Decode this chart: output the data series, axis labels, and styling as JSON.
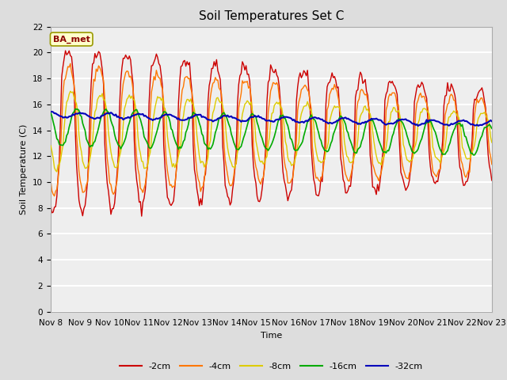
{
  "title": "Soil Temperatures Set C",
  "xlabel": "Time",
  "ylabel": "Soil Temperature (C)",
  "ylim": [
    0,
    22
  ],
  "yticks": [
    0,
    2,
    4,
    6,
    8,
    10,
    12,
    14,
    16,
    18,
    20,
    22
  ],
  "xtick_labels": [
    "Nov 8",
    "Nov 9",
    "Nov 10",
    "Nov 11",
    "Nov 12",
    "Nov 13",
    "Nov 14",
    "Nov 15",
    "Nov 16",
    "Nov 17",
    "Nov 18",
    "Nov 19",
    "Nov 20",
    "Nov 21",
    "Nov 22",
    "Nov 23"
  ],
  "series": {
    "-2cm": {
      "color": "#cc0000",
      "linewidth": 1.0
    },
    "-4cm": {
      "color": "#ff7700",
      "linewidth": 1.0
    },
    "-8cm": {
      "color": "#ddcc00",
      "linewidth": 1.0
    },
    "-16cm": {
      "color": "#00aa00",
      "linewidth": 1.2
    },
    "-32cm": {
      "color": "#0000bb",
      "linewidth": 1.5
    }
  },
  "legend_label": "BA_met",
  "background_color": "#dddddd",
  "plot_bg_color": "#eeeeee",
  "grid_color": "#ffffff",
  "title_fontsize": 11,
  "axis_fontsize": 8,
  "tick_fontsize": 7.5
}
